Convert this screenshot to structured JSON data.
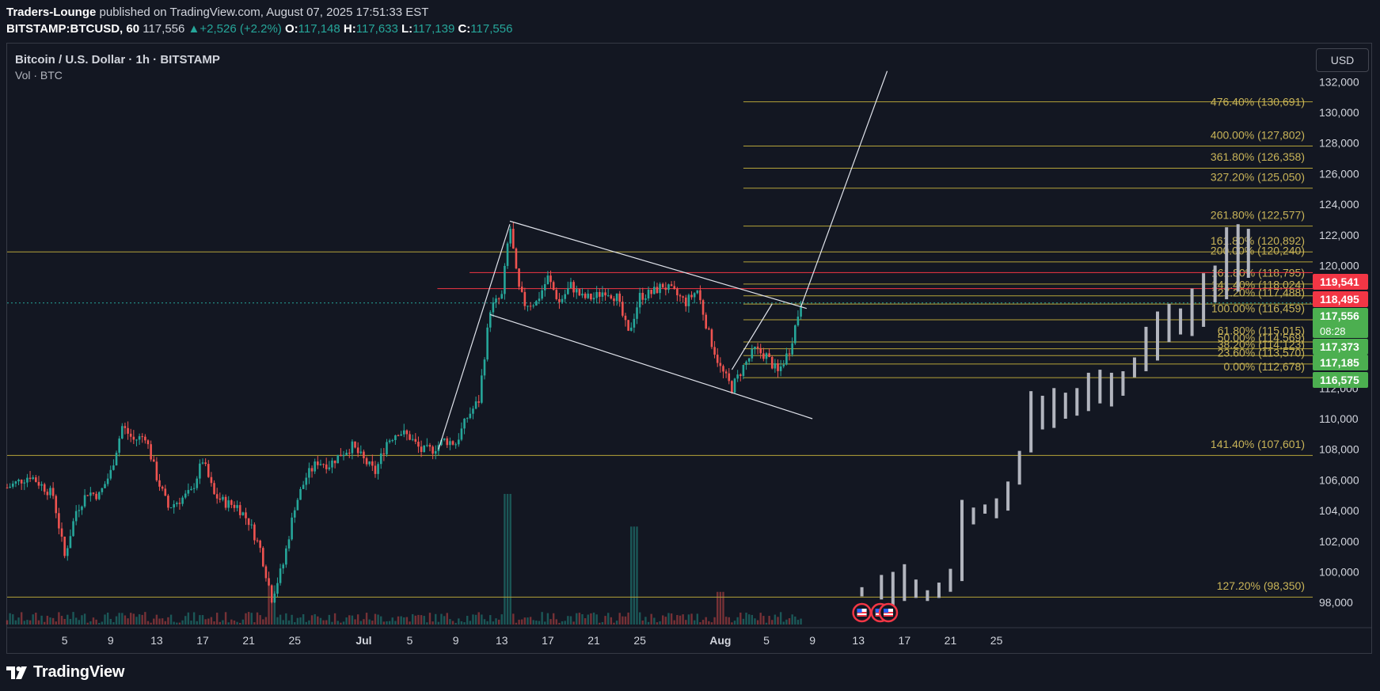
{
  "header": {
    "publisher": "Traders-Lounge",
    "published_text": "published on TradingView.com, August 07, 2025 17:51:33 EST",
    "symbol": "BITSTAMP:BTCUSD, 60",
    "last": "117,556",
    "change": "+2,526 (+2.2%)",
    "o_label": "O:",
    "o_value": "117,148",
    "h_label": "H:",
    "h_value": "117,633",
    "l_label": "L:",
    "l_value": "117,139",
    "c_label": "C:",
    "c_value": "117,556"
  },
  "legend": {
    "title": "Bitcoin / U.S. Dollar · 1h · BITSTAMP",
    "volume": "Vol · BTC"
  },
  "currency_button": "USD",
  "footer": {
    "brand": "TradingView"
  },
  "colors": {
    "background": "#131722",
    "up": "#26a69a",
    "down": "#ef5350",
    "fib": "#b5a33a",
    "fib_text": "#c9b458",
    "red_line": "#f23645",
    "green_tag": "#4caf50",
    "red_tag": "#f23645",
    "projection": "#b2b5be"
  },
  "chart_data": {
    "type": "candlestick",
    "title": "Bitcoin / U.S. Dollar · 1h · BITSTAMP",
    "currency": "USD",
    "ylim": [
      97000,
      134000
    ],
    "y_ticks": [
      {
        "value": 98000,
        "label": "98,000"
      },
      {
        "value": 100000,
        "label": "100,000"
      },
      {
        "value": 102000,
        "label": "102,000"
      },
      {
        "value": 104000,
        "label": "104,000"
      },
      {
        "value": 106000,
        "label": "106,000"
      },
      {
        "value": 108000,
        "label": "108,000"
      },
      {
        "value": 110000,
        "label": "110,000"
      },
      {
        "value": 112000,
        "label": "112,000"
      },
      {
        "value": 114000,
        "label": "114,000"
      },
      {
        "value": 116000,
        "label": "116,000"
      },
      {
        "value": 118000,
        "label": "118,000"
      },
      {
        "value": 120000,
        "label": "120,000"
      },
      {
        "value": 122000,
        "label": "122,000"
      },
      {
        "value": 124000,
        "label": "124,000"
      },
      {
        "value": 126000,
        "label": "126,000"
      },
      {
        "value": 128000,
        "label": "128,000"
      },
      {
        "value": 130000,
        "label": "130,000"
      },
      {
        "value": 132000,
        "label": "132,000"
      }
    ],
    "x_ticks": [
      {
        "day": 5,
        "label": "5"
      },
      {
        "day": 9,
        "label": "9"
      },
      {
        "day": 13,
        "label": "13"
      },
      {
        "day": 17,
        "label": "17"
      },
      {
        "day": 21,
        "label": "21"
      },
      {
        "day": 25,
        "label": "25"
      },
      {
        "day": 31,
        "label": "Jul",
        "bold": true
      },
      {
        "day": 35,
        "label": "5"
      },
      {
        "day": 39,
        "label": "9"
      },
      {
        "day": 43,
        "label": "13"
      },
      {
        "day": 47,
        "label": "17"
      },
      {
        "day": 51,
        "label": "21"
      },
      {
        "day": 55,
        "label": "25"
      },
      {
        "day": 62,
        "label": "Aug",
        "bold": true
      },
      {
        "day": 66,
        "label": "5"
      },
      {
        "day": 70,
        "label": "9"
      },
      {
        "day": 74,
        "label": "13"
      },
      {
        "day": 78,
        "label": "17"
      },
      {
        "day": 82,
        "label": "21"
      },
      {
        "day": 86,
        "label": "25"
      }
    ],
    "price_path": [
      [
        0,
        105500
      ],
      [
        2,
        106300
      ],
      [
        4,
        105000
      ],
      [
        5,
        101000
      ],
      [
        6,
        104000
      ],
      [
        7,
        105200
      ],
      [
        8,
        105000
      ],
      [
        9,
        106500
      ],
      [
        10,
        109500
      ],
      [
        11,
        108600
      ],
      [
        12,
        108900
      ],
      [
        13,
        106200
      ],
      [
        14,
        104200
      ],
      [
        15,
        104700
      ],
      [
        16,
        105200
      ],
      [
        17,
        107300
      ],
      [
        18,
        105000
      ],
      [
        19,
        104500
      ],
      [
        20,
        104300
      ],
      [
        21,
        103300
      ],
      [
        22,
        101500
      ],
      [
        23,
        98300
      ],
      [
        24,
        100500
      ],
      [
        25,
        104300
      ],
      [
        26,
        106200
      ],
      [
        27,
        107200
      ],
      [
        28,
        107000
      ],
      [
        29,
        107700
      ],
      [
        30,
        108200
      ],
      [
        31,
        107300
      ],
      [
        32,
        106500
      ],
      [
        33,
        108500
      ],
      [
        34,
        109200
      ],
      [
        35,
        108800
      ],
      [
        36,
        107900
      ],
      [
        37,
        108000
      ],
      [
        38,
        108600
      ],
      [
        39,
        108400
      ],
      [
        40,
        110100
      ],
      [
        41,
        111200
      ],
      [
        42,
        117200
      ],
      [
        43,
        118000
      ],
      [
        43.7,
        122700
      ],
      [
        44.4,
        118600
      ],
      [
        45,
        117500
      ],
      [
        46,
        117600
      ],
      [
        47,
        119200
      ],
      [
        48,
        117600
      ],
      [
        49,
        118700
      ],
      [
        50,
        117900
      ],
      [
        51,
        117900
      ],
      [
        52,
        118400
      ],
      [
        53,
        117900
      ],
      [
        54,
        115500
      ],
      [
        55,
        118000
      ],
      [
        56,
        118200
      ],
      [
        57,
        118700
      ],
      [
        58,
        118200
      ],
      [
        59,
        117600
      ],
      [
        60,
        118400
      ],
      [
        61,
        115500
      ],
      [
        62,
        113300
      ],
      [
        63,
        112000
      ],
      [
        64,
        113400
      ],
      [
        65,
        114500
      ],
      [
        66,
        114100
      ],
      [
        67,
        113000
      ],
      [
        68,
        114500
      ],
      [
        69,
        117556
      ]
    ],
    "volume_spikes": [
      {
        "day": 23,
        "relative": 0.3
      },
      {
        "day": 43.5,
        "relative": 1.0
      },
      {
        "day": 54.5,
        "relative": 0.75
      },
      {
        "day": 62,
        "relative": 0.25
      }
    ],
    "fib_levels": [
      {
        "label": "476.40% (130,691)",
        "value": 130691,
        "label_y": 130691,
        "full": false
      },
      {
        "label": "400.00% (127,802)",
        "value": 127802,
        "label_y": 128540,
        "full": false
      },
      {
        "label": "361.80% (126,358)",
        "value": 126358,
        "label_y": 127100,
        "full": false
      },
      {
        "label": "327.20% (125,050)",
        "value": 125050,
        "label_y": 125800,
        "full": false
      },
      {
        "label": "261.80% (122,577)",
        "value": 122577,
        "label_y": 123320,
        "full": false
      },
      {
        "label": "161.80% (120,892)",
        "value": 120892,
        "label_y": 121630,
        "full": true
      },
      {
        "label": "200.00% (120,240)",
        "value": 120240,
        "label_y": 120980,
        "full": false
      },
      {
        "label": "161.80% (118,795)",
        "value": 118795,
        "label_y": 119540,
        "full": false
      },
      {
        "label": "141.40% (118,024)",
        "value": 118024,
        "label_y": 118770,
        "full": false
      },
      {
        "label": "127.20% (117,488)",
        "value": 117488,
        "label_y": 118230,
        "full": false
      },
      {
        "label": "100.00% (116,459)",
        "value": 116459,
        "label_y": 117200,
        "full": false
      },
      {
        "label": "61.80% (115,015)",
        "value": 115015,
        "label_y": 115760,
        "full": false
      },
      {
        "label": "50.00% (114,569)",
        "value": 114569,
        "label_y": 115310,
        "full": false
      },
      {
        "label": "38.20% (114,123)",
        "value": 114123,
        "label_y": 114870,
        "full": false
      },
      {
        "label": "23.60% (113,570)",
        "value": 113570,
        "label_y": 114320,
        "full": false
      },
      {
        "label": "0.00% (112,678)",
        "value": 112678,
        "label_y": 113420,
        "full": false
      },
      {
        "label": "141.40% (107,601)",
        "value": 107601,
        "label_y": 108350,
        "full": true
      },
      {
        "label": "127.20% (98,350)",
        "value": 98350,
        "label_y": 99090,
        "full": true
      }
    ],
    "horizontal_red_lines": [
      119541,
      118495
    ],
    "price_tags": [
      {
        "text": "119,541",
        "value": 119541,
        "color": "#f23645"
      },
      {
        "text": "118,495",
        "value": 118495,
        "color": "#f23645"
      },
      {
        "text": "117,556",
        "value": 117556,
        "color": "#4caf50",
        "sub": "08:28"
      },
      {
        "text": "117,373",
        "value": 117373,
        "color": "#4caf50"
      },
      {
        "text": "117,185",
        "value": 117185,
        "color": "#4caf50"
      },
      {
        "text": "116,575",
        "value": 116575,
        "color": "#4caf50"
      }
    ],
    "trendlines": [
      {
        "from": [
          43.7,
          122900
        ],
        "to": [
          69.5,
          117200
        ]
      },
      {
        "from": [
          42,
          116800
        ],
        "to": [
          70,
          110000
        ]
      },
      {
        "from": [
          37.5,
          108000
        ],
        "to": [
          43.7,
          122700
        ]
      },
      {
        "from": [
          63,
          113200
        ],
        "to": [
          66.5,
          117500
        ]
      },
      {
        "from": [
          69,
          117300
        ],
        "to": [
          76.5,
          132700
        ]
      }
    ],
    "projection_bars": [
      [
        74.3,
        99000,
        98400
      ],
      [
        76,
        99800,
        98200
      ],
      [
        77,
        100000,
        97800
      ],
      [
        78,
        100500,
        98100
      ],
      [
        79,
        99500,
        98300
      ],
      [
        80,
        98800,
        98100
      ],
      [
        81,
        99300,
        98300
      ],
      [
        82,
        100200,
        98700
      ],
      [
        83,
        104700,
        99400
      ],
      [
        84,
        104200,
        103100
      ],
      [
        85,
        104400,
        103800
      ],
      [
        86,
        104800,
        103500
      ],
      [
        87,
        105900,
        104000
      ],
      [
        88,
        107900,
        105700
      ],
      [
        89,
        111800,
        107800
      ],
      [
        90,
        111500,
        109300
      ],
      [
        91,
        112000,
        109400
      ],
      [
        92,
        111700,
        110000
      ],
      [
        93,
        112000,
        110200
      ],
      [
        94,
        113000,
        110500
      ],
      [
        95,
        113200,
        111000
      ],
      [
        96,
        113000,
        110800
      ],
      [
        97,
        113100,
        111500
      ],
      [
        98,
        114000,
        112700
      ],
      [
        99,
        116000,
        113100
      ],
      [
        100,
        117000,
        113800
      ],
      [
        101,
        117500,
        115000
      ],
      [
        102,
        117200,
        115500
      ],
      [
        103,
        118500,
        115400
      ],
      [
        104,
        119500,
        116000
      ],
      [
        105,
        120000,
        117600
      ],
      [
        106,
        122500,
        117800
      ],
      [
        107,
        122700,
        118300
      ],
      [
        107.9,
        122400,
        119200
      ]
    ],
    "event_markers": [
      {
        "day": 74.3
      },
      {
        "day": 75.9
      },
      {
        "day": 76.6
      }
    ]
  }
}
